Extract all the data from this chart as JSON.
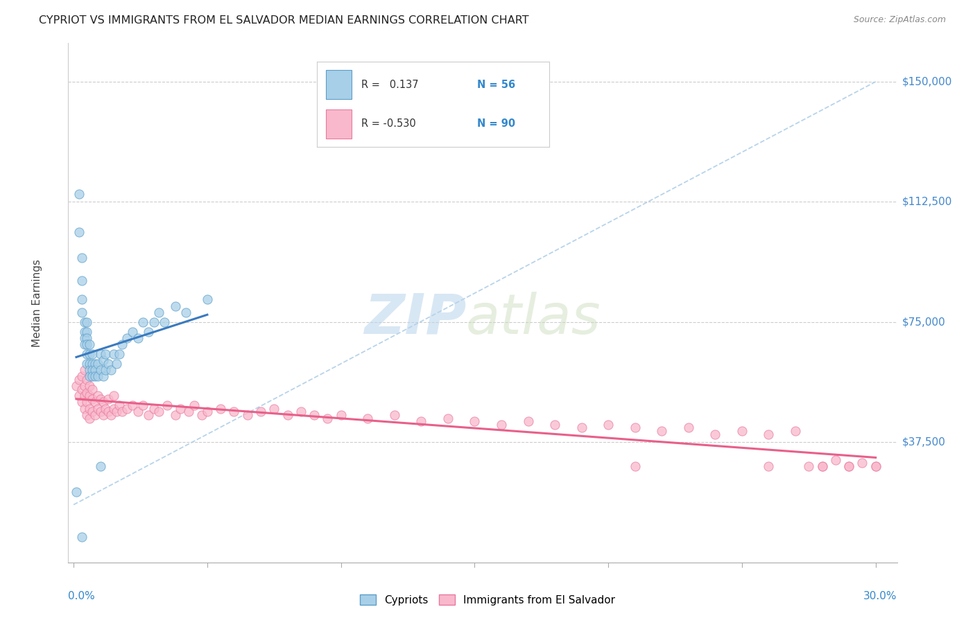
{
  "title": "CYPRIOT VS IMMIGRANTS FROM EL SALVADOR MEDIAN EARNINGS CORRELATION CHART",
  "source": "Source: ZipAtlas.com",
  "ylabel": "Median Earnings",
  "ytick_labels": [
    "$37,500",
    "$75,000",
    "$112,500",
    "$150,000"
  ],
  "ytick_values": [
    37500,
    75000,
    112500,
    150000
  ],
  "ymin": 0,
  "ymax": 162000,
  "xmin": -0.002,
  "xmax": 0.308,
  "legend_R_blue": "0.137",
  "legend_N_blue": "56",
  "legend_R_pink": "-0.530",
  "legend_N_pink": "90",
  "legend_label_blue": "Cypriots",
  "legend_label_pink": "Immigrants from El Salvador",
  "watermark_zip": "ZIP",
  "watermark_atlas": "atlas",
  "blue_color": "#a8cfe8",
  "pink_color": "#f9b8cb",
  "blue_edge_color": "#5b9ec9",
  "pink_edge_color": "#e87a9f",
  "blue_line_color": "#3a7abf",
  "pink_line_color": "#e8608a",
  "dashed_line_color": "#b0cfe8",
  "background_color": "#ffffff",
  "grid_color": "#cccccc",
  "blue_scatter_x": [
    0.001,
    0.002,
    0.002,
    0.003,
    0.003,
    0.003,
    0.003,
    0.004,
    0.004,
    0.004,
    0.004,
    0.005,
    0.005,
    0.005,
    0.005,
    0.005,
    0.005,
    0.006,
    0.006,
    0.006,
    0.006,
    0.006,
    0.007,
    0.007,
    0.007,
    0.007,
    0.008,
    0.008,
    0.008,
    0.009,
    0.009,
    0.01,
    0.01,
    0.011,
    0.011,
    0.012,
    0.012,
    0.013,
    0.014,
    0.015,
    0.016,
    0.017,
    0.018,
    0.02,
    0.022,
    0.024,
    0.026,
    0.028,
    0.03,
    0.032,
    0.034,
    0.038,
    0.042,
    0.05,
    0.01,
    0.003
  ],
  "blue_scatter_y": [
    22000,
    115000,
    103000,
    95000,
    88000,
    82000,
    78000,
    75000,
    72000,
    70000,
    68000,
    75000,
    72000,
    70000,
    68000,
    65000,
    62000,
    68000,
    65000,
    62000,
    60000,
    58000,
    65000,
    62000,
    60000,
    58000,
    62000,
    60000,
    58000,
    62000,
    58000,
    65000,
    60000,
    63000,
    58000,
    65000,
    60000,
    62000,
    60000,
    65000,
    62000,
    65000,
    68000,
    70000,
    72000,
    70000,
    75000,
    72000,
    75000,
    78000,
    75000,
    80000,
    78000,
    82000,
    30000,
    8000
  ],
  "pink_scatter_x": [
    0.001,
    0.002,
    0.002,
    0.003,
    0.003,
    0.003,
    0.004,
    0.004,
    0.004,
    0.004,
    0.005,
    0.005,
    0.005,
    0.005,
    0.006,
    0.006,
    0.006,
    0.006,
    0.007,
    0.007,
    0.007,
    0.008,
    0.008,
    0.009,
    0.009,
    0.01,
    0.01,
    0.011,
    0.011,
    0.012,
    0.013,
    0.013,
    0.014,
    0.015,
    0.015,
    0.016,
    0.017,
    0.018,
    0.02,
    0.022,
    0.024,
    0.026,
    0.028,
    0.03,
    0.032,
    0.035,
    0.038,
    0.04,
    0.043,
    0.045,
    0.048,
    0.05,
    0.055,
    0.06,
    0.065,
    0.07,
    0.075,
    0.08,
    0.085,
    0.09,
    0.095,
    0.1,
    0.11,
    0.12,
    0.13,
    0.14,
    0.15,
    0.16,
    0.17,
    0.18,
    0.19,
    0.2,
    0.21,
    0.22,
    0.23,
    0.24,
    0.25,
    0.26,
    0.27,
    0.275,
    0.28,
    0.285,
    0.29,
    0.295,
    0.3,
    0.21,
    0.26,
    0.28,
    0.29,
    0.3
  ],
  "pink_scatter_y": [
    55000,
    52000,
    57000,
    50000,
    54000,
    58000,
    48000,
    52000,
    55000,
    60000,
    46000,
    50000,
    53000,
    57000,
    48000,
    52000,
    55000,
    45000,
    47000,
    51000,
    54000,
    46000,
    50000,
    48000,
    52000,
    47000,
    51000,
    46000,
    50000,
    48000,
    47000,
    51000,
    46000,
    48000,
    52000,
    47000,
    49000,
    47000,
    48000,
    49000,
    47000,
    49000,
    46000,
    48000,
    47000,
    49000,
    46000,
    48000,
    47000,
    49000,
    46000,
    47000,
    48000,
    47000,
    46000,
    47000,
    48000,
    46000,
    47000,
    46000,
    45000,
    46000,
    45000,
    46000,
    44000,
    45000,
    44000,
    43000,
    44000,
    43000,
    42000,
    43000,
    42000,
    41000,
    42000,
    40000,
    41000,
    40000,
    41000,
    30000,
    30000,
    32000,
    30000,
    31000,
    30000,
    30000,
    30000,
    30000,
    30000,
    30000
  ]
}
